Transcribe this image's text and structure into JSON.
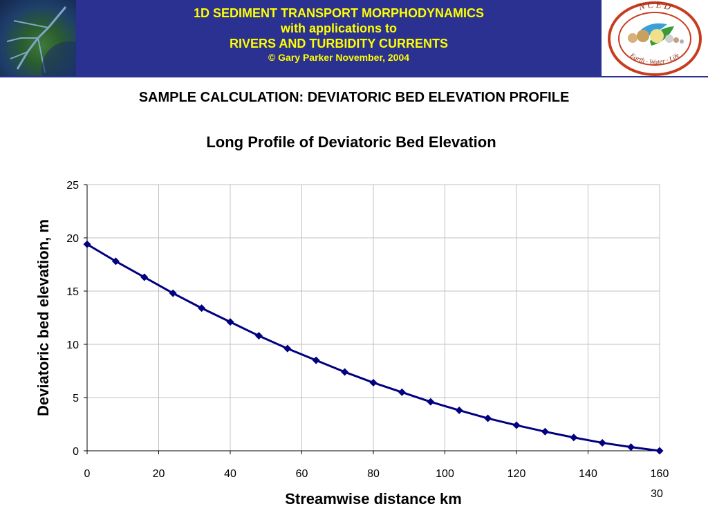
{
  "banner": {
    "line1": "1D SEDIMENT TRANSPORT MORPHODYNAMICS",
    "line2": "with applications to",
    "line3": "RIVERS AND TURBIDITY CURRENTS",
    "line4": "© Gary Parker November, 2004"
  },
  "logo": {
    "top_text": "N C E D",
    "bottom_text": "Earth · Water · Life"
  },
  "slide_title": "SAMPLE CALCULATION: DEVIATORIC BED ELEVATION PROFILE",
  "page_number": "30",
  "colors": {
    "banner_bg": "#2a3191",
    "banner_text": "#ffff00",
    "series": "#000080",
    "grid": "#c0c0c0"
  },
  "chart_data": {
    "type": "line",
    "title": "Long Profile of Deviatoric Bed Elevation",
    "xlabel": "Streamwise distance km",
    "ylabel": "Deviatoric bed elevation, m",
    "xlim": [
      0,
      160
    ],
    "ylim": [
      0,
      25
    ],
    "x_ticks": [
      0,
      20,
      40,
      60,
      80,
      100,
      120,
      140,
      160
    ],
    "y_ticks": [
      0,
      5,
      10,
      15,
      20,
      25
    ],
    "grid": true,
    "marker": "diamond",
    "series": [
      {
        "x": [
          0,
          8,
          16,
          24,
          32,
          40,
          48,
          56,
          64,
          72,
          80,
          88,
          96,
          104,
          112,
          120,
          128,
          136,
          144,
          152,
          160
        ],
        "values": [
          19.4,
          17.8,
          16.3,
          14.8,
          13.4,
          12.1,
          10.8,
          9.6,
          8.5,
          7.4,
          6.4,
          5.5,
          4.6,
          3.8,
          3.05,
          2.4,
          1.8,
          1.25,
          0.75,
          0.35,
          0.0
        ]
      }
    ]
  }
}
